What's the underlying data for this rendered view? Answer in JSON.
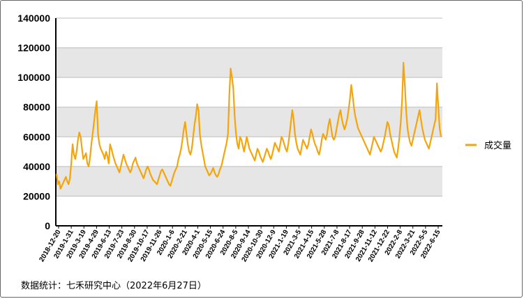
{
  "chart_data": {
    "type": "line",
    "title": "",
    "xlabel": "",
    "ylabel": "",
    "ylim": [
      0,
      140000
    ],
    "yticks": [
      "0",
      "20000",
      "40000",
      "60000",
      "80000",
      "100000",
      "120000",
      "140000"
    ],
    "xtick_labels": [
      "2018-12-20",
      "2019-1-31",
      "2019-3-19",
      "2019-4-29",
      "2019-6-13",
      "2019-7-23",
      "2019-8-30",
      "2019-10-17",
      "2019-11-26",
      "2020-1-6",
      "2020-2-21",
      "2020-4-1",
      "2020-5-15",
      "2020-6-24",
      "2020-8-5",
      "2020-9-14",
      "2020-10-30",
      "2020-12-9",
      "2021-1-19",
      "2021-3-5",
      "2021-4-15",
      "2021-5-28",
      "2021-7-8",
      "2021-8-17",
      "2021-9-28",
      "2021-11-12",
      "2021-12-22",
      "2022-2-8",
      "2022-3-21",
      "2022-5-5",
      "2022-6-15"
    ],
    "grid": true,
    "legend_position": "right",
    "color": "#F5A50A",
    "series": [
      {
        "name": "成交量",
        "values": [
          35000,
          28000,
          30000,
          25000,
          27000,
          29000,
          31000,
          33000,
          30000,
          28000,
          32000,
          42000,
          55000,
          48000,
          45000,
          50000,
          58000,
          63000,
          60000,
          52000,
          45000,
          47000,
          49000,
          42000,
          40000,
          46000,
          55000,
          62000,
          70000,
          78000,
          84000,
          62000,
          55000,
          52000,
          50000,
          48000,
          45000,
          50000,
          47000,
          42000,
          55000,
          52000,
          48000,
          45000,
          42000,
          40000,
          38000,
          36000,
          40000,
          44000,
          48000,
          45000,
          42000,
          40000,
          38000,
          36000,
          38000,
          42000,
          44000,
          46000,
          42000,
          40000,
          38000,
          36000,
          34000,
          32000,
          35000,
          38000,
          40000,
          38000,
          35000,
          33000,
          31000,
          30000,
          29000,
          28000,
          31000,
          34000,
          37000,
          38000,
          36000,
          34000,
          32000,
          30000,
          28000,
          27000,
          30000,
          33000,
          36000,
          38000,
          40000,
          45000,
          48000,
          52000,
          58000,
          65000,
          70000,
          62000,
          55000,
          50000,
          48000,
          52000,
          60000,
          68000,
          74000,
          82000,
          78000,
          62000,
          55000,
          50000,
          45000,
          40000,
          38000,
          36000,
          34000,
          35000,
          37000,
          39000,
          36000,
          34000,
          33000,
          35000,
          38000,
          40000,
          44000,
          48000,
          52000,
          56000,
          62000,
          88000,
          106000,
          100000,
          92000,
          74000,
          62000,
          55000,
          52000,
          60000,
          58000,
          54000,
          50000,
          55000,
          60000,
          56000,
          52000,
          50000,
          48000,
          46000,
          44000,
          48000,
          52000,
          50000,
          47000,
          45000,
          43000,
          46000,
          49000,
          52000,
          50000,
          47000,
          45000,
          48000,
          52000,
          56000,
          54000,
          52000,
          50000,
          55000,
          60000,
          58000,
          55000,
          52000,
          50000,
          55000,
          62000,
          70000,
          78000,
          72000,
          62000,
          56000,
          52000,
          50000,
          48000,
          53000,
          58000,
          56000,
          54000,
          52000,
          55000,
          60000,
          65000,
          62000,
          58000,
          55000,
          53000,
          50000,
          48000,
          52000,
          58000,
          62000,
          60000,
          58000,
          62000,
          68000,
          72000,
          66000,
          60000,
          58000,
          60000,
          65000,
          70000,
          75000,
          78000,
          72000,
          68000,
          65000,
          68000,
          72000,
          78000,
          85000,
          95000,
          88000,
          80000,
          74000,
          70000,
          66000,
          64000,
          62000,
          60000,
          58000,
          56000,
          54000,
          52000,
          50000,
          48000,
          52000,
          56000,
          60000,
          58000,
          56000,
          54000,
          52000,
          50000,
          52000,
          56000,
          60000,
          65000,
          70000,
          68000,
          62000,
          58000,
          54000,
          50000,
          48000,
          46000,
          52000,
          60000,
          70000,
          85000,
          110000,
          95000,
          78000,
          66000,
          60000,
          56000,
          54000,
          58000,
          62000,
          66000,
          70000,
          74000,
          78000,
          72000,
          66000,
          62000,
          58000,
          56000,
          54000,
          52000,
          56000,
          60000,
          64000,
          68000,
          72000,
          96000,
          80000,
          66000,
          60000
        ]
      }
    ]
  },
  "legend": {
    "label": "成交量"
  },
  "source_note": "数据统计：七禾研究中心（2022年6月27日）"
}
